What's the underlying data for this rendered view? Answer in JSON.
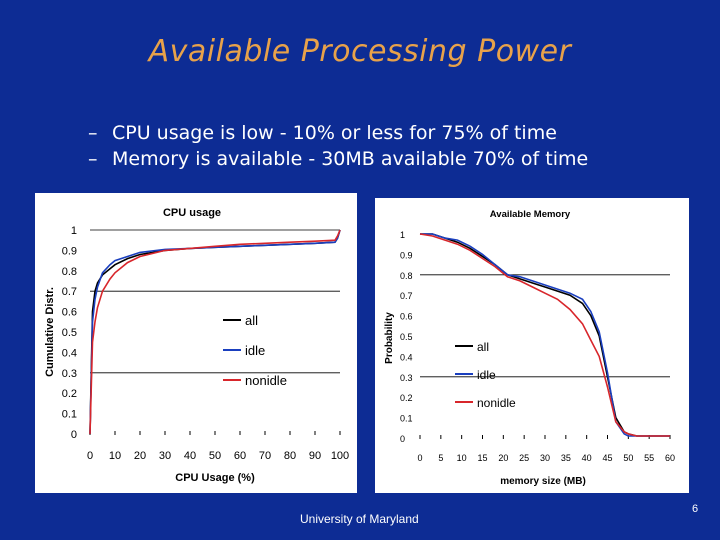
{
  "slide": {
    "title": "Available Processing Power",
    "bullets": [
      "CPU usage is low - 10% or less for 75% of time",
      "Memory is available - 30MB available 70% of time"
    ],
    "bullet_marker": "–",
    "footer": "University of Maryland",
    "page_number": "6",
    "colors": {
      "background": "#0d2c94",
      "title": "#e8a24a",
      "text": "#ffffff"
    }
  },
  "chart_data": [
    {
      "type": "line",
      "title": "CPU usage",
      "xlabel": "CPU Usage (%)",
      "ylabel": "Cumulative Distr.",
      "xlim": [
        0,
        100
      ],
      "ylim": [
        0,
        1
      ],
      "x_ticks": [
        "0",
        "10",
        "20",
        "30",
        "40",
        "50",
        "60",
        "70",
        "80",
        "90",
        "100"
      ],
      "y_ticks": [
        "0",
        "0.1",
        "0.2",
        "0.3",
        "0.4",
        "0.5",
        "0.6",
        "0.7",
        "0.8",
        "0.9",
        "1"
      ],
      "gridlines_y": [
        0.3,
        0.7,
        1.0
      ],
      "legend": "center-right",
      "series": [
        {
          "name": "all",
          "color": "#000000",
          "x": [
            0,
            1,
            2,
            3,
            5,
            8,
            10,
            15,
            20,
            30,
            40,
            50,
            60,
            70,
            80,
            90,
            98,
            99,
            100
          ],
          "y": [
            0,
            0.6,
            0.7,
            0.74,
            0.78,
            0.81,
            0.83,
            0.86,
            0.88,
            0.9,
            0.91,
            0.915,
            0.92,
            0.925,
            0.93,
            0.935,
            0.94,
            0.96,
            1.0
          ]
        },
        {
          "name": "idle",
          "color": "#1a3fbf",
          "x": [
            0,
            1,
            2,
            3,
            5,
            8,
            10,
            15,
            20,
            30,
            40,
            50,
            60,
            70,
            80,
            90,
            98,
            99,
            100
          ],
          "y": [
            0,
            0.55,
            0.66,
            0.72,
            0.79,
            0.83,
            0.85,
            0.87,
            0.89,
            0.905,
            0.91,
            0.915,
            0.92,
            0.925,
            0.93,
            0.935,
            0.94,
            0.96,
            1.0
          ]
        },
        {
          "name": "nonidle",
          "color": "#d8262b",
          "x": [
            0,
            1,
            2,
            3,
            5,
            8,
            10,
            15,
            20,
            30,
            40,
            50,
            60,
            70,
            80,
            90,
            98,
            99,
            100
          ],
          "y": [
            0,
            0.45,
            0.55,
            0.62,
            0.7,
            0.76,
            0.79,
            0.84,
            0.87,
            0.9,
            0.91,
            0.92,
            0.93,
            0.935,
            0.94,
            0.945,
            0.95,
            0.97,
            1.0
          ]
        }
      ]
    },
    {
      "type": "line",
      "title": "Available Memory",
      "xlabel": "memory size (MB)",
      "ylabel": "Probability",
      "xlim": [
        0,
        60
      ],
      "ylim": [
        0,
        1
      ],
      "x_ticks": [
        "0",
        "5",
        "10",
        "15",
        "20",
        "25",
        "30",
        "35",
        "40",
        "45",
        "50",
        "55",
        "60"
      ],
      "y_ticks": [
        "0",
        "0.1",
        "0.2",
        "0.3",
        "0.4",
        "0.5",
        "0.6",
        "0.7",
        "0.8",
        "0.9",
        "1"
      ],
      "gridlines_y": [
        0.3,
        0.8
      ],
      "legend": "center-left",
      "series": [
        {
          "name": "all",
          "color": "#000000",
          "x": [
            0,
            3,
            6,
            9,
            12,
            15,
            18,
            21,
            24,
            27,
            30,
            33,
            36,
            39,
            41,
            43,
            45,
            47,
            49,
            50,
            52,
            56,
            60
          ],
          "y": [
            1.0,
            1.0,
            0.98,
            0.96,
            0.93,
            0.89,
            0.85,
            0.8,
            0.78,
            0.76,
            0.74,
            0.72,
            0.7,
            0.66,
            0.6,
            0.5,
            0.3,
            0.1,
            0.03,
            0.02,
            0.01,
            0.01,
            0.01
          ]
        },
        {
          "name": "idle",
          "color": "#1a3fbf",
          "x": [
            0,
            3,
            6,
            9,
            12,
            15,
            18,
            21,
            24,
            27,
            30,
            33,
            36,
            39,
            41,
            43,
            45,
            47,
            49,
            50,
            52,
            56,
            60
          ],
          "y": [
            1.0,
            1.0,
            0.98,
            0.97,
            0.94,
            0.9,
            0.85,
            0.8,
            0.79,
            0.77,
            0.75,
            0.73,
            0.71,
            0.68,
            0.62,
            0.52,
            0.32,
            0.08,
            0.02,
            0.01,
            0.01,
            0.01,
            0.01
          ]
        },
        {
          "name": "nonidle",
          "color": "#d8262b",
          "x": [
            0,
            3,
            6,
            9,
            12,
            15,
            18,
            21,
            24,
            27,
            30,
            33,
            36,
            39,
            41,
            43,
            45,
            47,
            49,
            50,
            52,
            56,
            60
          ],
          "y": [
            1.0,
            0.99,
            0.97,
            0.95,
            0.92,
            0.88,
            0.84,
            0.79,
            0.77,
            0.74,
            0.71,
            0.68,
            0.63,
            0.56,
            0.48,
            0.4,
            0.25,
            0.08,
            0.03,
            0.02,
            0.01,
            0.01,
            0.01
          ]
        }
      ]
    }
  ]
}
